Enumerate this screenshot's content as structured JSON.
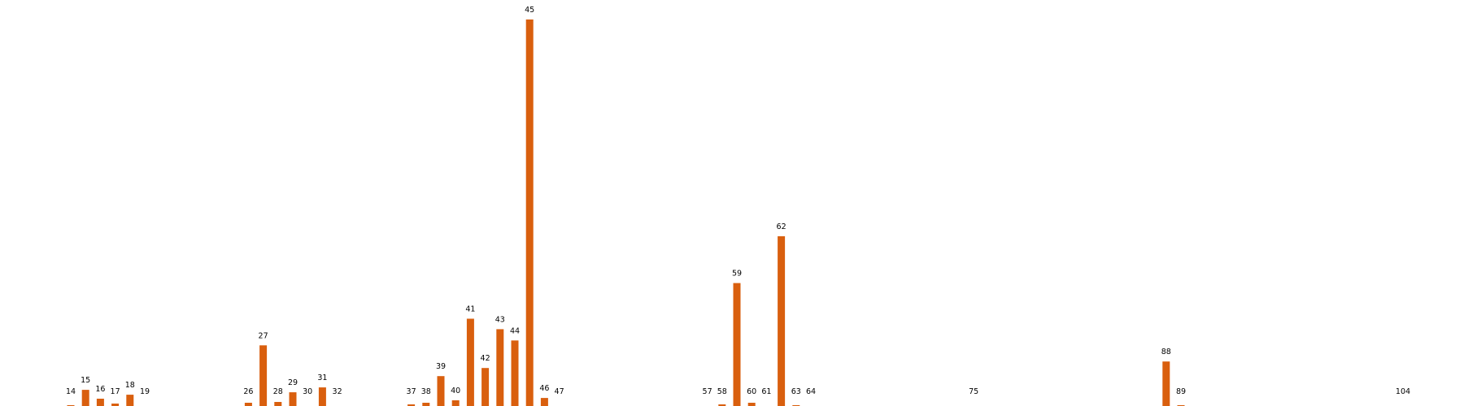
{
  "chart_data": {
    "type": "bar",
    "title": "",
    "xlabel": "",
    "ylabel": "",
    "grid": false,
    "axes_visible": false,
    "bar_color": "#d95f0e",
    "categories": [
      "14",
      "15",
      "16",
      "17",
      "18",
      "19",
      "26",
      "27",
      "28",
      "29",
      "30",
      "31",
      "32",
      "37",
      "38",
      "39",
      "40",
      "41",
      "42",
      "43",
      "44",
      "45",
      "46",
      "47",
      "57",
      "58",
      "59",
      "60",
      "61",
      "62",
      "63",
      "64",
      "75",
      "88",
      "89",
      "104"
    ],
    "x": [
      14,
      15,
      16,
      17,
      18,
      19,
      26,
      27,
      28,
      29,
      30,
      31,
      32,
      37,
      38,
      39,
      40,
      41,
      42,
      43,
      44,
      45,
      46,
      47,
      57,
      58,
      59,
      60,
      61,
      62,
      63,
      64,
      75,
      88,
      89,
      104
    ],
    "values": [
      3,
      22,
      11,
      5,
      16,
      1,
      6,
      77,
      7,
      19,
      0,
      25,
      1,
      4,
      6,
      39,
      9,
      110,
      49,
      97,
      83,
      480,
      12,
      2,
      2,
      4,
      154,
      6,
      0,
      212,
      3,
      0,
      0,
      57,
      3,
      0
    ],
    "ylim": [
      0,
      480
    ]
  }
}
